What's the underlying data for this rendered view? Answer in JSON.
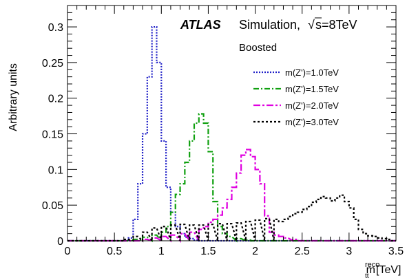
{
  "chart_data": {
    "type": "line",
    "title": "",
    "ylabel": "Arbitrary units",
    "xlabel_main": "m",
    "xlabel_sup": "reco",
    "xlabel_sub": "tt",
    "xlabel_unit": "[TeV]",
    "xlim": [
      0,
      3.5
    ],
    "ylim": [
      0,
      0.33
    ],
    "x_ticks": [
      0,
      0.5,
      1,
      1.5,
      2,
      2.5,
      3,
      3.5
    ],
    "x_tick_labels": [
      "0",
      "0.5",
      "1",
      "1.5",
      "2",
      "2.5",
      "3",
      "3.5"
    ],
    "y_ticks": [
      0,
      0.05,
      0.1,
      0.15,
      0.2,
      0.25,
      0.3
    ],
    "y_tick_labels": [
      "0",
      "0.05",
      "0.1",
      "0.15",
      "0.2",
      "0.25",
      "0.3"
    ],
    "grid": false,
    "legend_position": "right",
    "annotations": {
      "atlas": "ATLAS",
      "simulation": "Simulation,",
      "sqrt_symbol": "√",
      "energy_s": "s",
      "energy_value": "=8TeV",
      "selection": "Boosted"
    },
    "bin_width": 0.05,
    "series": [
      {
        "name": "m(Z')=1.0TeV",
        "color": "#2020c8",
        "dash": "2,2",
        "bins": [
          [
            0.6,
            0.001
          ],
          [
            0.65,
            0.004
          ],
          [
            0.7,
            0.03
          ],
          [
            0.75,
            0.08
          ],
          [
            0.8,
            0.15
          ],
          [
            0.85,
            0.23
          ],
          [
            0.9,
            0.3
          ],
          [
            0.95,
            0.25
          ],
          [
            1.0,
            0.14
          ],
          [
            1.05,
            0.075
          ],
          [
            1.1,
            0.04
          ],
          [
            1.15,
            0.02
          ],
          [
            1.2,
            0.01
          ],
          [
            1.25,
            0.005
          ],
          [
            1.3,
            0.003
          ],
          [
            1.35,
            0.001
          ]
        ]
      },
      {
        "name": "m(Z')=1.5TeV",
        "color": "#10a010",
        "dash": "8,3,2,3",
        "bins": [
          [
            0.7,
            0.002
          ],
          [
            0.8,
            0.005
          ],
          [
            0.9,
            0.008
          ],
          [
            1.0,
            0.012
          ],
          [
            1.05,
            0.02
          ],
          [
            1.1,
            0.04
          ],
          [
            1.15,
            0.065
          ],
          [
            1.2,
            0.08
          ],
          [
            1.25,
            0.11
          ],
          [
            1.3,
            0.14
          ],
          [
            1.35,
            0.165
          ],
          [
            1.4,
            0.178
          ],
          [
            1.45,
            0.165
          ],
          [
            1.5,
            0.125
          ],
          [
            1.55,
            0.055
          ],
          [
            1.6,
            0.02
          ],
          [
            1.65,
            0.01
          ],
          [
            1.7,
            0.006
          ],
          [
            1.8,
            0.003
          ],
          [
            1.9,
            0.001
          ]
        ]
      },
      {
        "name": "m(Z')=2.0TeV",
        "color": "#e000e0",
        "dash": "10,3,3,3",
        "bins": [
          [
            0.8,
            0.002
          ],
          [
            0.9,
            0.004
          ],
          [
            1.0,
            0.006
          ],
          [
            1.1,
            0.008
          ],
          [
            1.2,
            0.01
          ],
          [
            1.3,
            0.012
          ],
          [
            1.4,
            0.016
          ],
          [
            1.45,
            0.02
          ],
          [
            1.5,
            0.026
          ],
          [
            1.55,
            0.03
          ],
          [
            1.6,
            0.036
          ],
          [
            1.65,
            0.046
          ],
          [
            1.7,
            0.058
          ],
          [
            1.75,
            0.075
          ],
          [
            1.8,
            0.095
          ],
          [
            1.85,
            0.12
          ],
          [
            1.9,
            0.128
          ],
          [
            1.95,
            0.118
          ],
          [
            2.0,
            0.1
          ],
          [
            2.05,
            0.08
          ],
          [
            2.1,
            0.035
          ],
          [
            2.15,
            0.012
          ],
          [
            2.2,
            0.008
          ],
          [
            2.25,
            0.006
          ],
          [
            2.3,
            0.004
          ],
          [
            2.4,
            0.002
          ]
        ]
      },
      {
        "name": "m(Z')=3.0TeV",
        "color": "#000000",
        "dash": "3,3",
        "bins": [
          [
            0.6,
            0.002
          ],
          [
            0.7,
            0.006
          ],
          [
            0.8,
            0.012
          ],
          [
            0.9,
            0.018
          ],
          [
            1.0,
            0.02
          ],
          [
            1.1,
            0.022
          ],
          [
            1.2,
            0.023
          ],
          [
            1.3,
            0.022
          ],
          [
            1.4,
            0.022
          ],
          [
            1.5,
            0.023
          ],
          [
            1.6,
            0.024
          ],
          [
            1.7,
            0.024
          ],
          [
            1.8,
            0.025
          ],
          [
            1.9,
            0.027
          ],
          [
            2.0,
            0.029
          ],
          [
            2.1,
            0.031
          ],
          [
            2.2,
            0.03
          ],
          [
            2.25,
            0.027
          ],
          [
            2.3,
            0.03
          ],
          [
            2.35,
            0.034
          ],
          [
            2.4,
            0.038
          ],
          [
            2.45,
            0.04
          ],
          [
            2.5,
            0.044
          ],
          [
            2.55,
            0.048
          ],
          [
            2.6,
            0.054
          ],
          [
            2.65,
            0.058
          ],
          [
            2.7,
            0.062
          ],
          [
            2.75,
            0.06
          ],
          [
            2.8,
            0.056
          ],
          [
            2.85,
            0.06
          ],
          [
            2.9,
            0.064
          ],
          [
            2.95,
            0.055
          ],
          [
            3.0,
            0.046
          ],
          [
            3.05,
            0.03
          ],
          [
            3.1,
            0.016
          ],
          [
            3.15,
            0.01
          ],
          [
            3.2,
            0.007
          ],
          [
            3.25,
            0.006
          ],
          [
            3.3,
            0.004
          ],
          [
            3.35,
            0.003
          ],
          [
            3.4,
            0.002
          ]
        ]
      }
    ]
  }
}
